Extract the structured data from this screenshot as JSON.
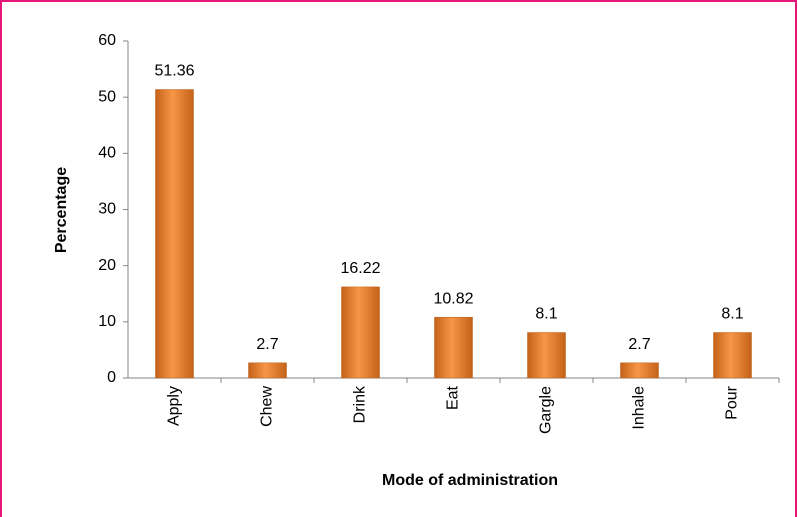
{
  "chart_data": {
    "type": "bar",
    "x_label": "Mode of administration",
    "y_label": "Percentage",
    "categories": [
      "Apply",
      "Chew",
      "Drink",
      "Eat",
      "Gargle",
      "Inhale",
      "Pour"
    ],
    "values": [
      51.36,
      2.7,
      16.22,
      10.82,
      8.1,
      2.7,
      8.1
    ],
    "color": "#f79646",
    "ylim": [
      0,
      60
    ],
    "yticks": [
      0,
      10,
      20,
      30,
      40,
      50,
      60
    ],
    "grid": false
  }
}
